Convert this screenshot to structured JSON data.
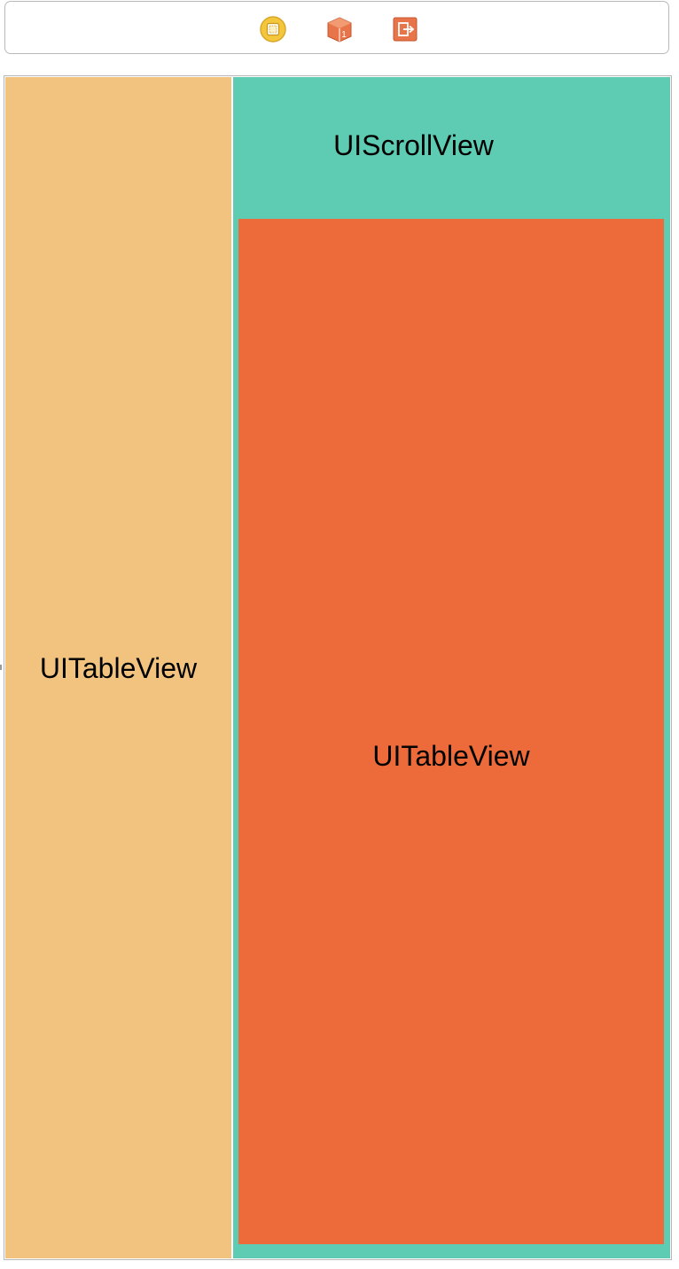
{
  "scene_dock": {
    "icons": [
      {
        "name": "view-controller-icon",
        "color": "#f3c63b"
      },
      {
        "name": "first-responder-icon",
        "color": "#e8744a"
      },
      {
        "name": "exit-icon",
        "color": "#e8744a"
      }
    ]
  },
  "canvas": {
    "left_table": {
      "label": "UITableView",
      "color": "#f2c37f"
    },
    "scroll_view": {
      "label": "UIScrollView",
      "color": "#5ecbb3"
    },
    "inner_table": {
      "label": "UITableView",
      "color": "#ed6b3a"
    }
  }
}
